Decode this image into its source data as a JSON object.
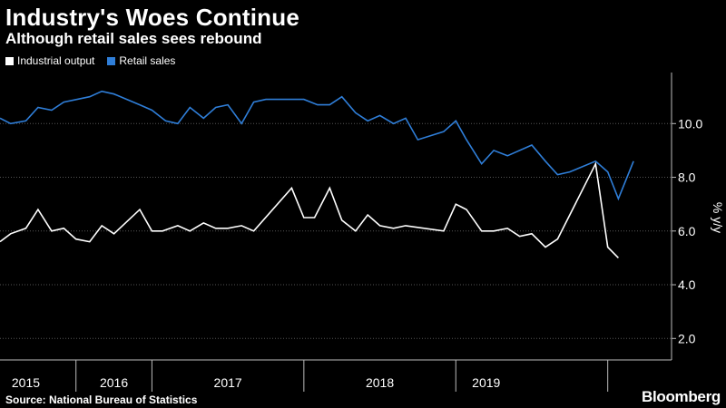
{
  "header": {
    "title": "Industry's Woes Continue",
    "subtitle": "Although retail sales sees rebound"
  },
  "footer": {
    "source": "Source: National Bureau of Statistics",
    "brand": "Bloomberg"
  },
  "colors": {
    "background": "#000000",
    "industrial": "#ffffff",
    "retail": "#2f7ed8",
    "grid": "#555555",
    "axis": "#bbbbbb"
  },
  "chart_data": {
    "type": "line",
    "title": "Industry's Woes Continue",
    "subtitle": "Although retail sales sees rebound",
    "ylabel": "% y/y",
    "xlabel": "",
    "ylim": [
      1.2,
      11.9
    ],
    "yticks": [
      2.0,
      4.0,
      6.0,
      8.0,
      10.0
    ],
    "ytick_labels": [
      "2.0",
      "4.0",
      "6.0",
      "8.0",
      "10.0"
    ],
    "xlim": [
      2015.0,
      2019.42
    ],
    "year_boundaries": [
      2015.5,
      2016.0,
      2017.0,
      2018.0,
      2019.0
    ],
    "year_labels": [
      {
        "label": "2015",
        "x": 2015.17
      },
      {
        "label": "2016",
        "x": 2015.75
      },
      {
        "label": "2017",
        "x": 2016.5
      },
      {
        "label": "2018",
        "x": 2017.5
      },
      {
        "label": "2019",
        "x": 2018.2
      }
    ],
    "grid": true,
    "legend": "top-left",
    "series": [
      {
        "name": "Industrial output",
        "color": "#ffffff",
        "points": [
          [
            2015.0,
            5.6
          ],
          [
            2015.07,
            5.9
          ],
          [
            2015.17,
            6.1
          ],
          [
            2015.25,
            6.8
          ],
          [
            2015.34,
            6.0
          ],
          [
            2015.42,
            6.1
          ],
          [
            2015.5,
            5.7
          ],
          [
            2015.59,
            5.6
          ],
          [
            2015.67,
            6.2
          ],
          [
            2015.75,
            5.9
          ],
          [
            2015.92,
            6.8
          ],
          [
            2016.0,
            6.0
          ],
          [
            2016.07,
            6.0
          ],
          [
            2016.17,
            6.2
          ],
          [
            2016.25,
            6.0
          ],
          [
            2016.34,
            6.3
          ],
          [
            2016.42,
            6.1
          ],
          [
            2016.5,
            6.1
          ],
          [
            2016.59,
            6.2
          ],
          [
            2016.67,
            6.0
          ],
          [
            2016.92,
            7.6
          ],
          [
            2017.0,
            6.5
          ],
          [
            2017.07,
            6.5
          ],
          [
            2017.17,
            7.6
          ],
          [
            2017.25,
            6.4
          ],
          [
            2017.34,
            6.0
          ],
          [
            2017.42,
            6.6
          ],
          [
            2017.5,
            6.2
          ],
          [
            2017.59,
            6.1
          ],
          [
            2017.67,
            6.2
          ],
          [
            2017.92,
            6.0
          ],
          [
            2018.0,
            7.0
          ],
          [
            2018.07,
            6.8
          ],
          [
            2018.17,
            6.0
          ],
          [
            2018.25,
            6.0
          ],
          [
            2018.34,
            6.1
          ],
          [
            2018.42,
            5.8
          ],
          [
            2018.5,
            5.9
          ],
          [
            2018.59,
            5.4
          ],
          [
            2018.67,
            5.7
          ],
          [
            2018.92,
            8.5
          ],
          [
            2019.0,
            5.4
          ],
          [
            2019.07,
            5.0
          ]
        ]
      },
      {
        "name": "Retail sales",
        "color": "#2f7ed8",
        "points": [
          [
            2015.0,
            10.2
          ],
          [
            2015.07,
            10.0
          ],
          [
            2015.17,
            10.1
          ],
          [
            2015.25,
            10.6
          ],
          [
            2015.34,
            10.5
          ],
          [
            2015.42,
            10.8
          ],
          [
            2015.59,
            11.0
          ],
          [
            2015.67,
            11.2
          ],
          [
            2015.75,
            11.1
          ],
          [
            2015.92,
            10.7
          ],
          [
            2016.0,
            10.5
          ],
          [
            2016.09,
            10.1
          ],
          [
            2016.17,
            10.0
          ],
          [
            2016.25,
            10.6
          ],
          [
            2016.34,
            10.2
          ],
          [
            2016.42,
            10.6
          ],
          [
            2016.5,
            10.7
          ],
          [
            2016.59,
            10.0
          ],
          [
            2016.67,
            10.8
          ],
          [
            2016.75,
            10.9
          ],
          [
            2016.92,
            10.9
          ],
          [
            2017.0,
            10.9
          ],
          [
            2017.09,
            10.7
          ],
          [
            2017.17,
            10.7
          ],
          [
            2017.25,
            11.0
          ],
          [
            2017.34,
            10.4
          ],
          [
            2017.42,
            10.1
          ],
          [
            2017.5,
            10.3
          ],
          [
            2017.59,
            10.0
          ],
          [
            2017.67,
            10.2
          ],
          [
            2017.75,
            9.4
          ],
          [
            2017.92,
            9.7
          ],
          [
            2018.0,
            10.1
          ],
          [
            2018.07,
            9.4
          ],
          [
            2018.17,
            8.5
          ],
          [
            2018.25,
            9.0
          ],
          [
            2018.34,
            8.8
          ],
          [
            2018.5,
            9.2
          ],
          [
            2018.59,
            8.6
          ],
          [
            2018.67,
            8.1
          ],
          [
            2018.75,
            8.2
          ],
          [
            2018.92,
            8.6
          ],
          [
            2019.0,
            8.2
          ],
          [
            2019.07,
            7.2
          ],
          [
            2019.17,
            8.6
          ]
        ]
      }
    ]
  }
}
